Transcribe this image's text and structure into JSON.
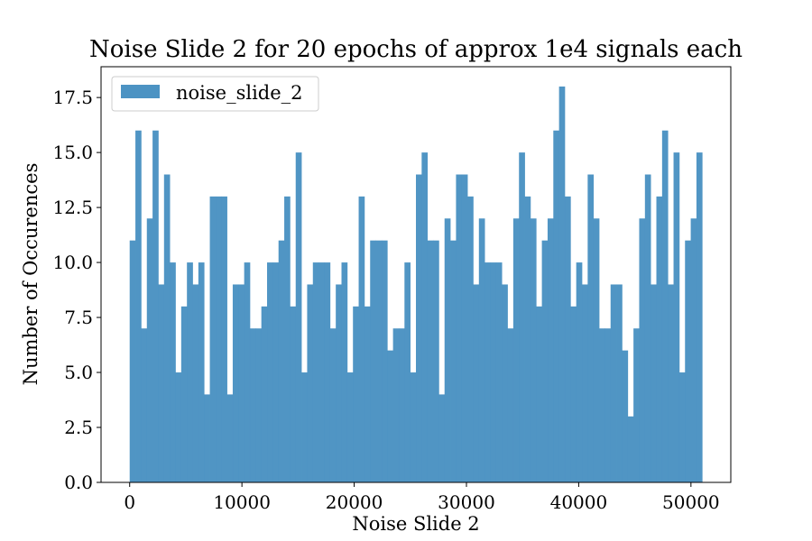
{
  "chart_data": {
    "type": "bar",
    "title": "Noise Slide 2 for 20 epochs of approx 1e4 signals each",
    "xlabel": "Noise Slide 2",
    "ylabel": "Number of Occurences",
    "legend": {
      "label": "noise_slide_2",
      "placement": "top-left"
    },
    "color": "#4C93C3",
    "grid": false,
    "xlim": [
      -2550,
      53550
    ],
    "ylim": [
      0,
      18.9
    ],
    "xticks": [
      {
        "value": 0,
        "label": "0"
      },
      {
        "value": 10000,
        "label": "10000"
      },
      {
        "value": 20000,
        "label": "20000"
      },
      {
        "value": 30000,
        "label": "30000"
      },
      {
        "value": 40000,
        "label": "40000"
      },
      {
        "value": 50000,
        "label": "50000"
      }
    ],
    "yticks": [
      {
        "value": 0,
        "label": "0.0"
      },
      {
        "value": 2.5,
        "label": "2.5"
      },
      {
        "value": 5,
        "label": "5.0"
      },
      {
        "value": 7.5,
        "label": "7.5"
      },
      {
        "value": 10,
        "label": "10.0"
      },
      {
        "value": 12.5,
        "label": "12.5"
      },
      {
        "value": 15,
        "label": "15.0"
      },
      {
        "value": 17.5,
        "label": "17.5"
      }
    ],
    "bin_start": 0,
    "bin_width": 510,
    "values": [
      11,
      16,
      7,
      12,
      16,
      9,
      14,
      10,
      5,
      8,
      10,
      9,
      10,
      4,
      13,
      13,
      13,
      4,
      9,
      9,
      10,
      7,
      7,
      8,
      10,
      10,
      11,
      13,
      8,
      15,
      5,
      9,
      10,
      10,
      10,
      7,
      9,
      10,
      5,
      8,
      13,
      8,
      11,
      11,
      11,
      6,
      7,
      7,
      10,
      5,
      14,
      15,
      11,
      11,
      4,
      12,
      11,
      14,
      14,
      13,
      9,
      12,
      10,
      10,
      10,
      9,
      7,
      12,
      15,
      13,
      12,
      8,
      11,
      12,
      16,
      18,
      13,
      8,
      10,
      9,
      14,
      12,
      7,
      7,
      9,
      9,
      6,
      3,
      7,
      12,
      14,
      9,
      13,
      16,
      9,
      15,
      5,
      11,
      12,
      15
    ]
  }
}
